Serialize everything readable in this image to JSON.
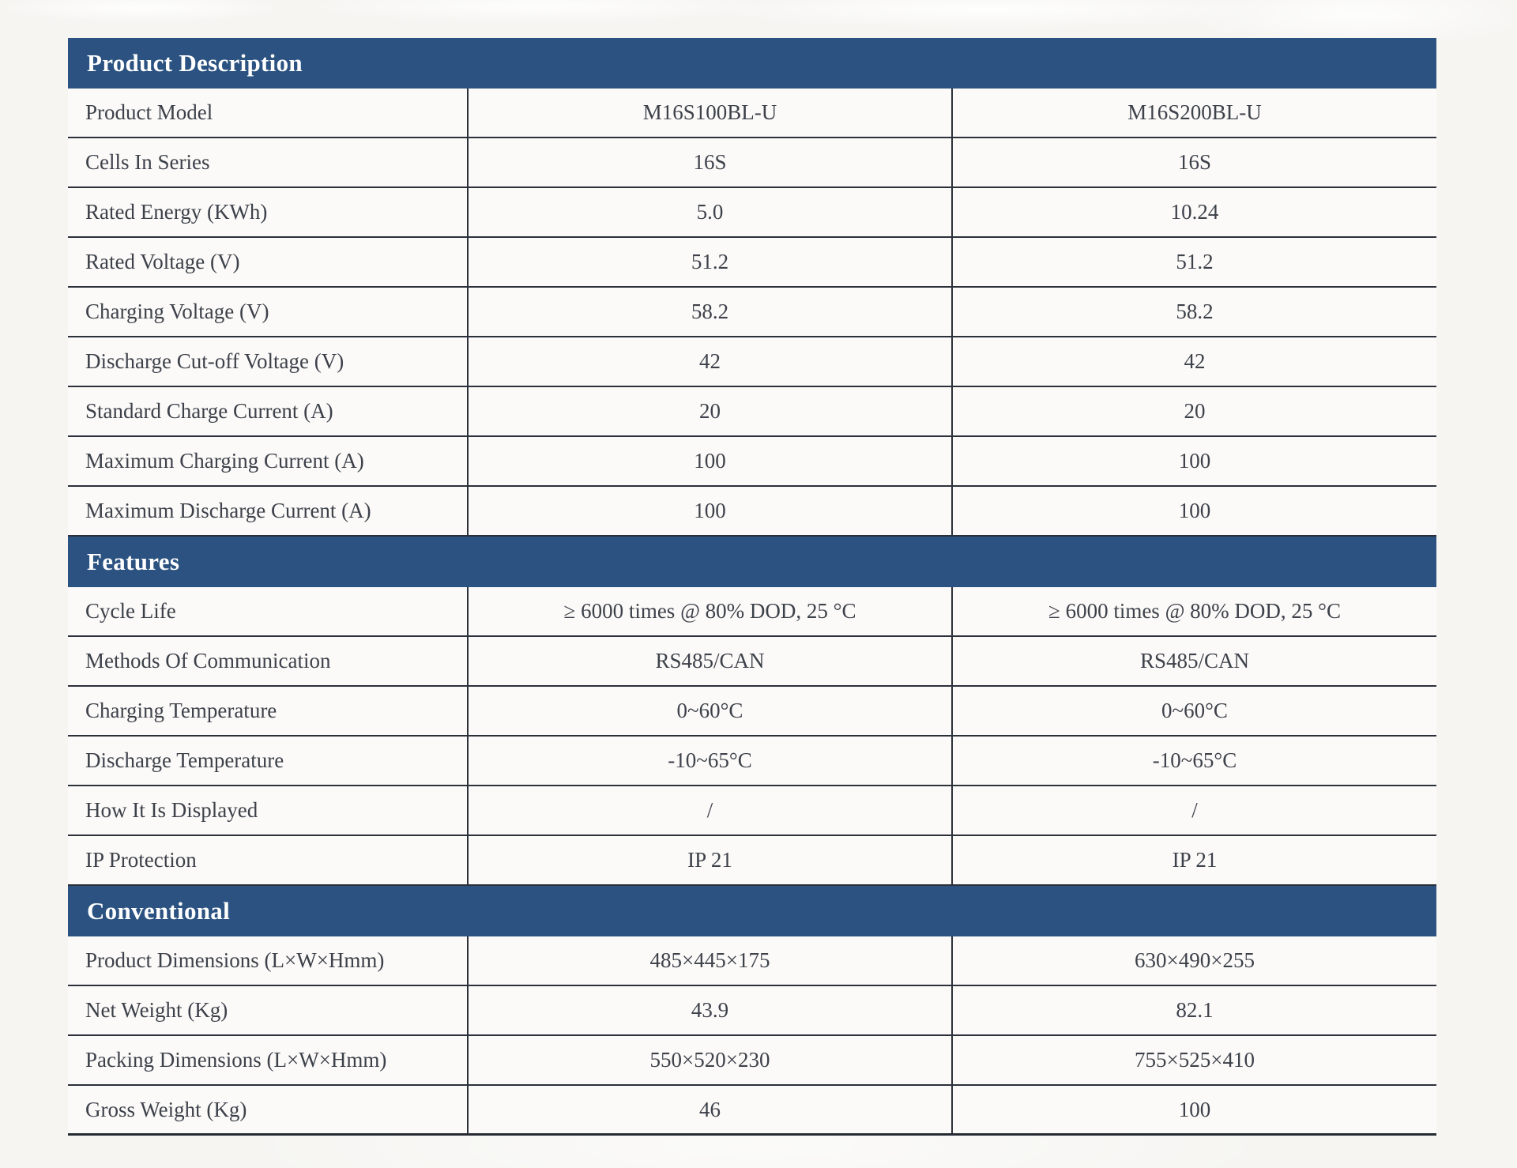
{
  "colors": {
    "section_header_bg": "#2b5280",
    "section_header_text": "#ffffff",
    "body_text": "#3d414a",
    "grid_line": "#2b303a",
    "page_bg": "#f6f5f2",
    "cell_bg": "#fbfaf8"
  },
  "table": {
    "sections": [
      {
        "title": "Product Description",
        "rows": [
          {
            "label": "Product Model",
            "col1": "M16S100BL-U",
            "col2": "M16S200BL-U"
          },
          {
            "label": "Cells In Series",
            "col1": "16S",
            "col2": "16S"
          },
          {
            "label": "Rated Energy (KWh)",
            "col1": "5.0",
            "col2": "10.24"
          },
          {
            "label": "Rated Voltage (V)",
            "col1": "51.2",
            "col2": "51.2"
          },
          {
            "label": "Charging Voltage (V)",
            "col1": "58.2",
            "col2": "58.2"
          },
          {
            "label": "Discharge Cut-off Voltage (V)",
            "col1": "42",
            "col2": "42"
          },
          {
            "label": "Standard Charge Current (A)",
            "col1": "20",
            "col2": "20"
          },
          {
            "label": "Maximum Charging Current (A)",
            "col1": "100",
            "col2": "100"
          },
          {
            "label": "Maximum Discharge Current (A)",
            "col1": "100",
            "col2": "100"
          }
        ]
      },
      {
        "title": "Features",
        "rows": [
          {
            "label": "Cycle Life",
            "col1": "≥ 6000 times @ 80% DOD, 25 °C",
            "col2": "≥ 6000 times @ 80% DOD, 25 °C"
          },
          {
            "label": "Methods Of Communication",
            "col1": "RS485/CAN",
            "col2": "RS485/CAN"
          },
          {
            "label": "Charging Temperature",
            "col1": "0~60°C",
            "col2": "0~60°C"
          },
          {
            "label": "Discharge Temperature",
            "col1": "-10~65°C",
            "col2": "-10~65°C"
          },
          {
            "label": "How It Is Displayed",
            "col1": "/",
            "col2": "/"
          },
          {
            "label": "IP Protection",
            "col1": "IP 21",
            "col2": "IP 21"
          }
        ]
      },
      {
        "title": "Conventional",
        "rows": [
          {
            "label": "Product Dimensions (L×W×Hmm)",
            "col1": "485×445×175",
            "col2": "630×490×255"
          },
          {
            "label": "Net Weight (Kg)",
            "col1": "43.9",
            "col2": "82.1"
          },
          {
            "label": "Packing Dimensions (L×W×Hmm)",
            "col1": "550×520×230",
            "col2": "755×525×410"
          },
          {
            "label": "Gross Weight (Kg)",
            "col1": "46",
            "col2": "100"
          }
        ]
      }
    ]
  }
}
